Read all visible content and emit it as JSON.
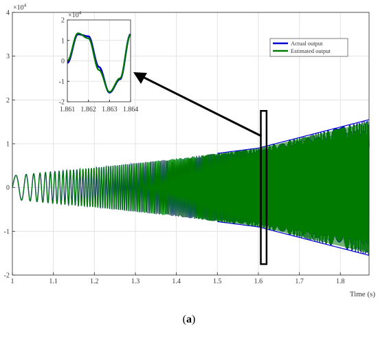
{
  "caption": {
    "open": "(",
    "letter": "a",
    "close": ")"
  },
  "chart_data": [
    {
      "type": "line",
      "title": "",
      "xlabel": "Time (s)",
      "ylabel": "",
      "xlim": [
        1,
        1.87
      ],
      "ylim": [
        -2,
        4
      ],
      "y_multiplier_label": "×10⁴",
      "y_multiplier_base": "×10",
      "y_multiplier_exp": "4",
      "grid": true,
      "legend_placement": "top-right",
      "x_ticks": [
        "1",
        "1.1",
        "1.2",
        "1.3",
        "1.4",
        "1.5",
        "1.6",
        "1.7",
        "1.8"
      ],
      "x_tick_values": [
        1,
        1.1,
        1.2,
        1.3,
        1.4,
        1.5,
        1.6,
        1.7,
        1.8
      ],
      "y_ticks": [
        "-2",
        "-1",
        "0",
        "1",
        "2",
        "3",
        "4"
      ],
      "y_tick_values": [
        -2,
        -1,
        0,
        1,
        2,
        3,
        4
      ],
      "series": [
        {
          "name": "Actual output",
          "color": "#0000cc",
          "envelope": {
            "x": [
              1,
              1.2,
              1.4,
              1.6,
              1.87
            ],
            "amp": [
              0.27,
              0.45,
              0.66,
              0.9,
              1.55
            ]
          }
        },
        {
          "name": "Estimated output",
          "color": "#007a00",
          "envelope": {
            "x": [
              1,
              1.2,
              1.4,
              1.6,
              1.87
            ],
            "amp": [
              0.27,
              0.45,
              0.66,
              0.9,
              1.52
            ]
          }
        }
      ],
      "highlight_box": {
        "x": [
          1.606,
          1.62
        ],
        "y": [
          -1.75,
          1.75
        ]
      }
    },
    {
      "type": "line",
      "title": "",
      "role": "inset zoom",
      "xlim": [
        1.861,
        1.864
      ],
      "ylim": [
        -2,
        2
      ],
      "y_multiplier_base": "×10",
      "y_multiplier_exp": "4",
      "grid": true,
      "x_ticks": [
        "1.861",
        "1.862",
        "1.863",
        "1.864"
      ],
      "x_tick_values": [
        1.861,
        1.862,
        1.863,
        1.864
      ],
      "y_ticks": [
        "-2",
        "-1",
        "0",
        "1",
        "2"
      ],
      "y_tick_values": [
        -2,
        -1,
        0,
        1,
        2
      ],
      "series": [
        {
          "name": "Actual output",
          "color": "#0000cc",
          "x": [
            1.861,
            1.8615,
            1.862,
            1.8625,
            1.863,
            1.8635,
            1.864
          ],
          "y": [
            -0.1,
            1.3,
            1.2,
            -0.3,
            -1.55,
            -0.9,
            1.3
          ]
        },
        {
          "name": "Estimated output",
          "color": "#007a00",
          "x": [
            1.861,
            1.8615,
            1.862,
            1.8625,
            1.863,
            1.8635,
            1.864
          ],
          "y": [
            0.0,
            1.35,
            1.1,
            -0.45,
            -1.52,
            -0.85,
            1.28
          ]
        }
      ]
    }
  ]
}
